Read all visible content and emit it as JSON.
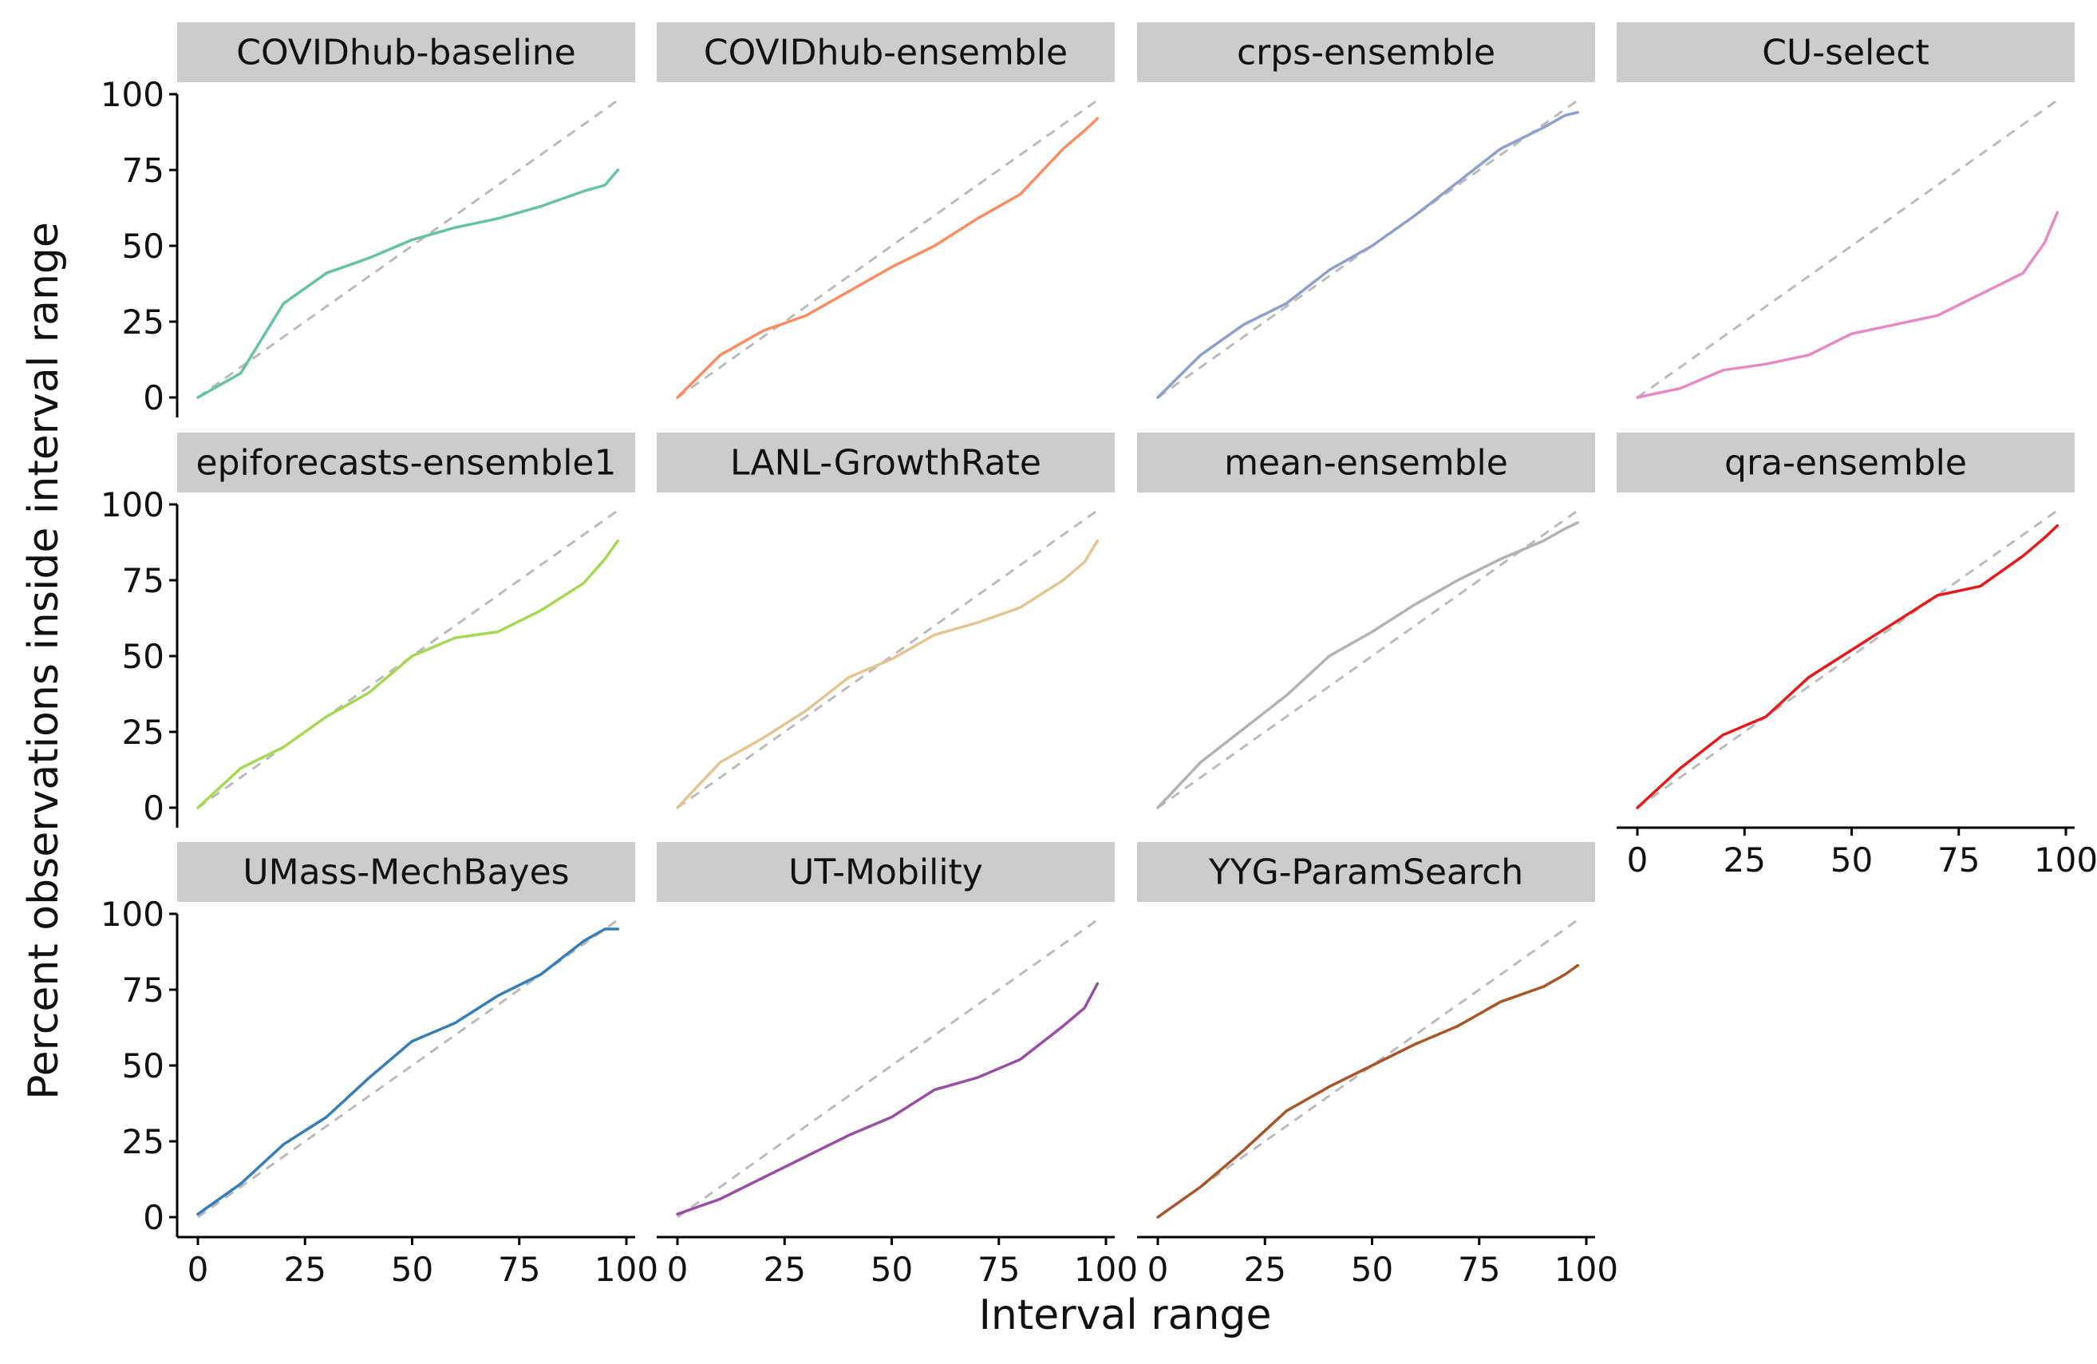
{
  "chart_data": {
    "type": "line",
    "facet_layout": {
      "columns": 4,
      "rows": 3
    },
    "xlabel": "Interval range",
    "ylabel": "Percent observations inside interval range",
    "xlim": [
      0,
      100
    ],
    "ylim": [
      0,
      100
    ],
    "x_ticks": [
      "0",
      "25",
      "50",
      "75",
      "100"
    ],
    "y_ticks": [
      "0",
      "25",
      "50",
      "75",
      "100"
    ],
    "reference_line": {
      "style": "dashed",
      "color": "#bbbbbb",
      "x": [
        0,
        98
      ],
      "y": [
        0,
        98
      ]
    },
    "grid": false,
    "legend": "none",
    "facets": [
      {
        "name": "COVIDhub-baseline",
        "color": "#66c2a5",
        "x": [
          0,
          10,
          20,
          30,
          40,
          50,
          60,
          70,
          80,
          90,
          95,
          98
        ],
        "y": [
          0,
          8,
          31,
          41,
          46,
          52,
          56,
          59,
          63,
          68,
          70,
          75
        ]
      },
      {
        "name": "COVIDhub-ensemble",
        "color": "#fc8d62",
        "x": [
          0,
          10,
          20,
          30,
          40,
          50,
          60,
          70,
          80,
          90,
          95,
          98
        ],
        "y": [
          0,
          14,
          22,
          27,
          35,
          43,
          50,
          59,
          67,
          82,
          88,
          92
        ]
      },
      {
        "name": "crps-ensemble",
        "color": "#8da0cb",
        "x": [
          0,
          10,
          20,
          30,
          40,
          50,
          60,
          70,
          80,
          90,
          95,
          98
        ],
        "y": [
          0,
          14,
          24,
          31,
          42,
          50,
          60,
          71,
          82,
          89,
          93,
          94
        ]
      },
      {
        "name": "CU-select",
        "color": "#e78ac3",
        "x": [
          0,
          10,
          20,
          30,
          40,
          50,
          60,
          70,
          80,
          90,
          95,
          98
        ],
        "y": [
          0,
          3,
          9,
          11,
          14,
          21,
          24,
          27,
          34,
          41,
          51,
          61
        ]
      },
      {
        "name": "epiforecasts-ensemble1",
        "color": "#a6d854",
        "x": [
          0,
          10,
          20,
          30,
          40,
          50,
          60,
          70,
          80,
          90,
          95,
          98
        ],
        "y": [
          0,
          13,
          20,
          30,
          38,
          50,
          56,
          58,
          65,
          74,
          82,
          88
        ]
      },
      {
        "name": "LANL-GrowthRate",
        "color": "#e5c494",
        "x": [
          0,
          10,
          20,
          30,
          40,
          50,
          60,
          70,
          80,
          90,
          95,
          98
        ],
        "y": [
          0,
          15,
          23,
          32,
          43,
          49,
          57,
          61,
          66,
          75,
          81,
          88
        ]
      },
      {
        "name": "mean-ensemble",
        "color": "#b3b3b3",
        "x": [
          0,
          10,
          20,
          30,
          40,
          50,
          60,
          70,
          80,
          90,
          95,
          98
        ],
        "y": [
          0,
          15,
          26,
          37,
          50,
          58,
          67,
          75,
          82,
          88,
          92,
          94
        ]
      },
      {
        "name": "qra-ensemble",
        "color": "#e41a1c",
        "x": [
          0,
          10,
          20,
          30,
          40,
          50,
          60,
          70,
          80,
          90,
          95,
          98
        ],
        "y": [
          0,
          13,
          24,
          30,
          43,
          52,
          61,
          70,
          73,
          83,
          89,
          93
        ]
      },
      {
        "name": "UMass-MechBayes",
        "color": "#377eb8",
        "x": [
          0,
          10,
          20,
          30,
          40,
          50,
          60,
          70,
          80,
          90,
          95,
          98
        ],
        "y": [
          1,
          11,
          24,
          33,
          46,
          58,
          64,
          73,
          80,
          91,
          95,
          95
        ]
      },
      {
        "name": "UT-Mobility",
        "color": "#984ea3",
        "x": [
          0,
          10,
          20,
          30,
          40,
          50,
          60,
          70,
          80,
          90,
          95,
          98
        ],
        "y": [
          1,
          6,
          13,
          20,
          27,
          33,
          42,
          46,
          52,
          63,
          69,
          77
        ]
      },
      {
        "name": "YYG-ParamSearch",
        "color": "#a65628",
        "x": [
          0,
          10,
          20,
          30,
          40,
          50,
          60,
          70,
          80,
          90,
          95,
          98
        ],
        "y": [
          0,
          10,
          22,
          35,
          43,
          50,
          57,
          63,
          71,
          76,
          80,
          83
        ]
      }
    ]
  }
}
